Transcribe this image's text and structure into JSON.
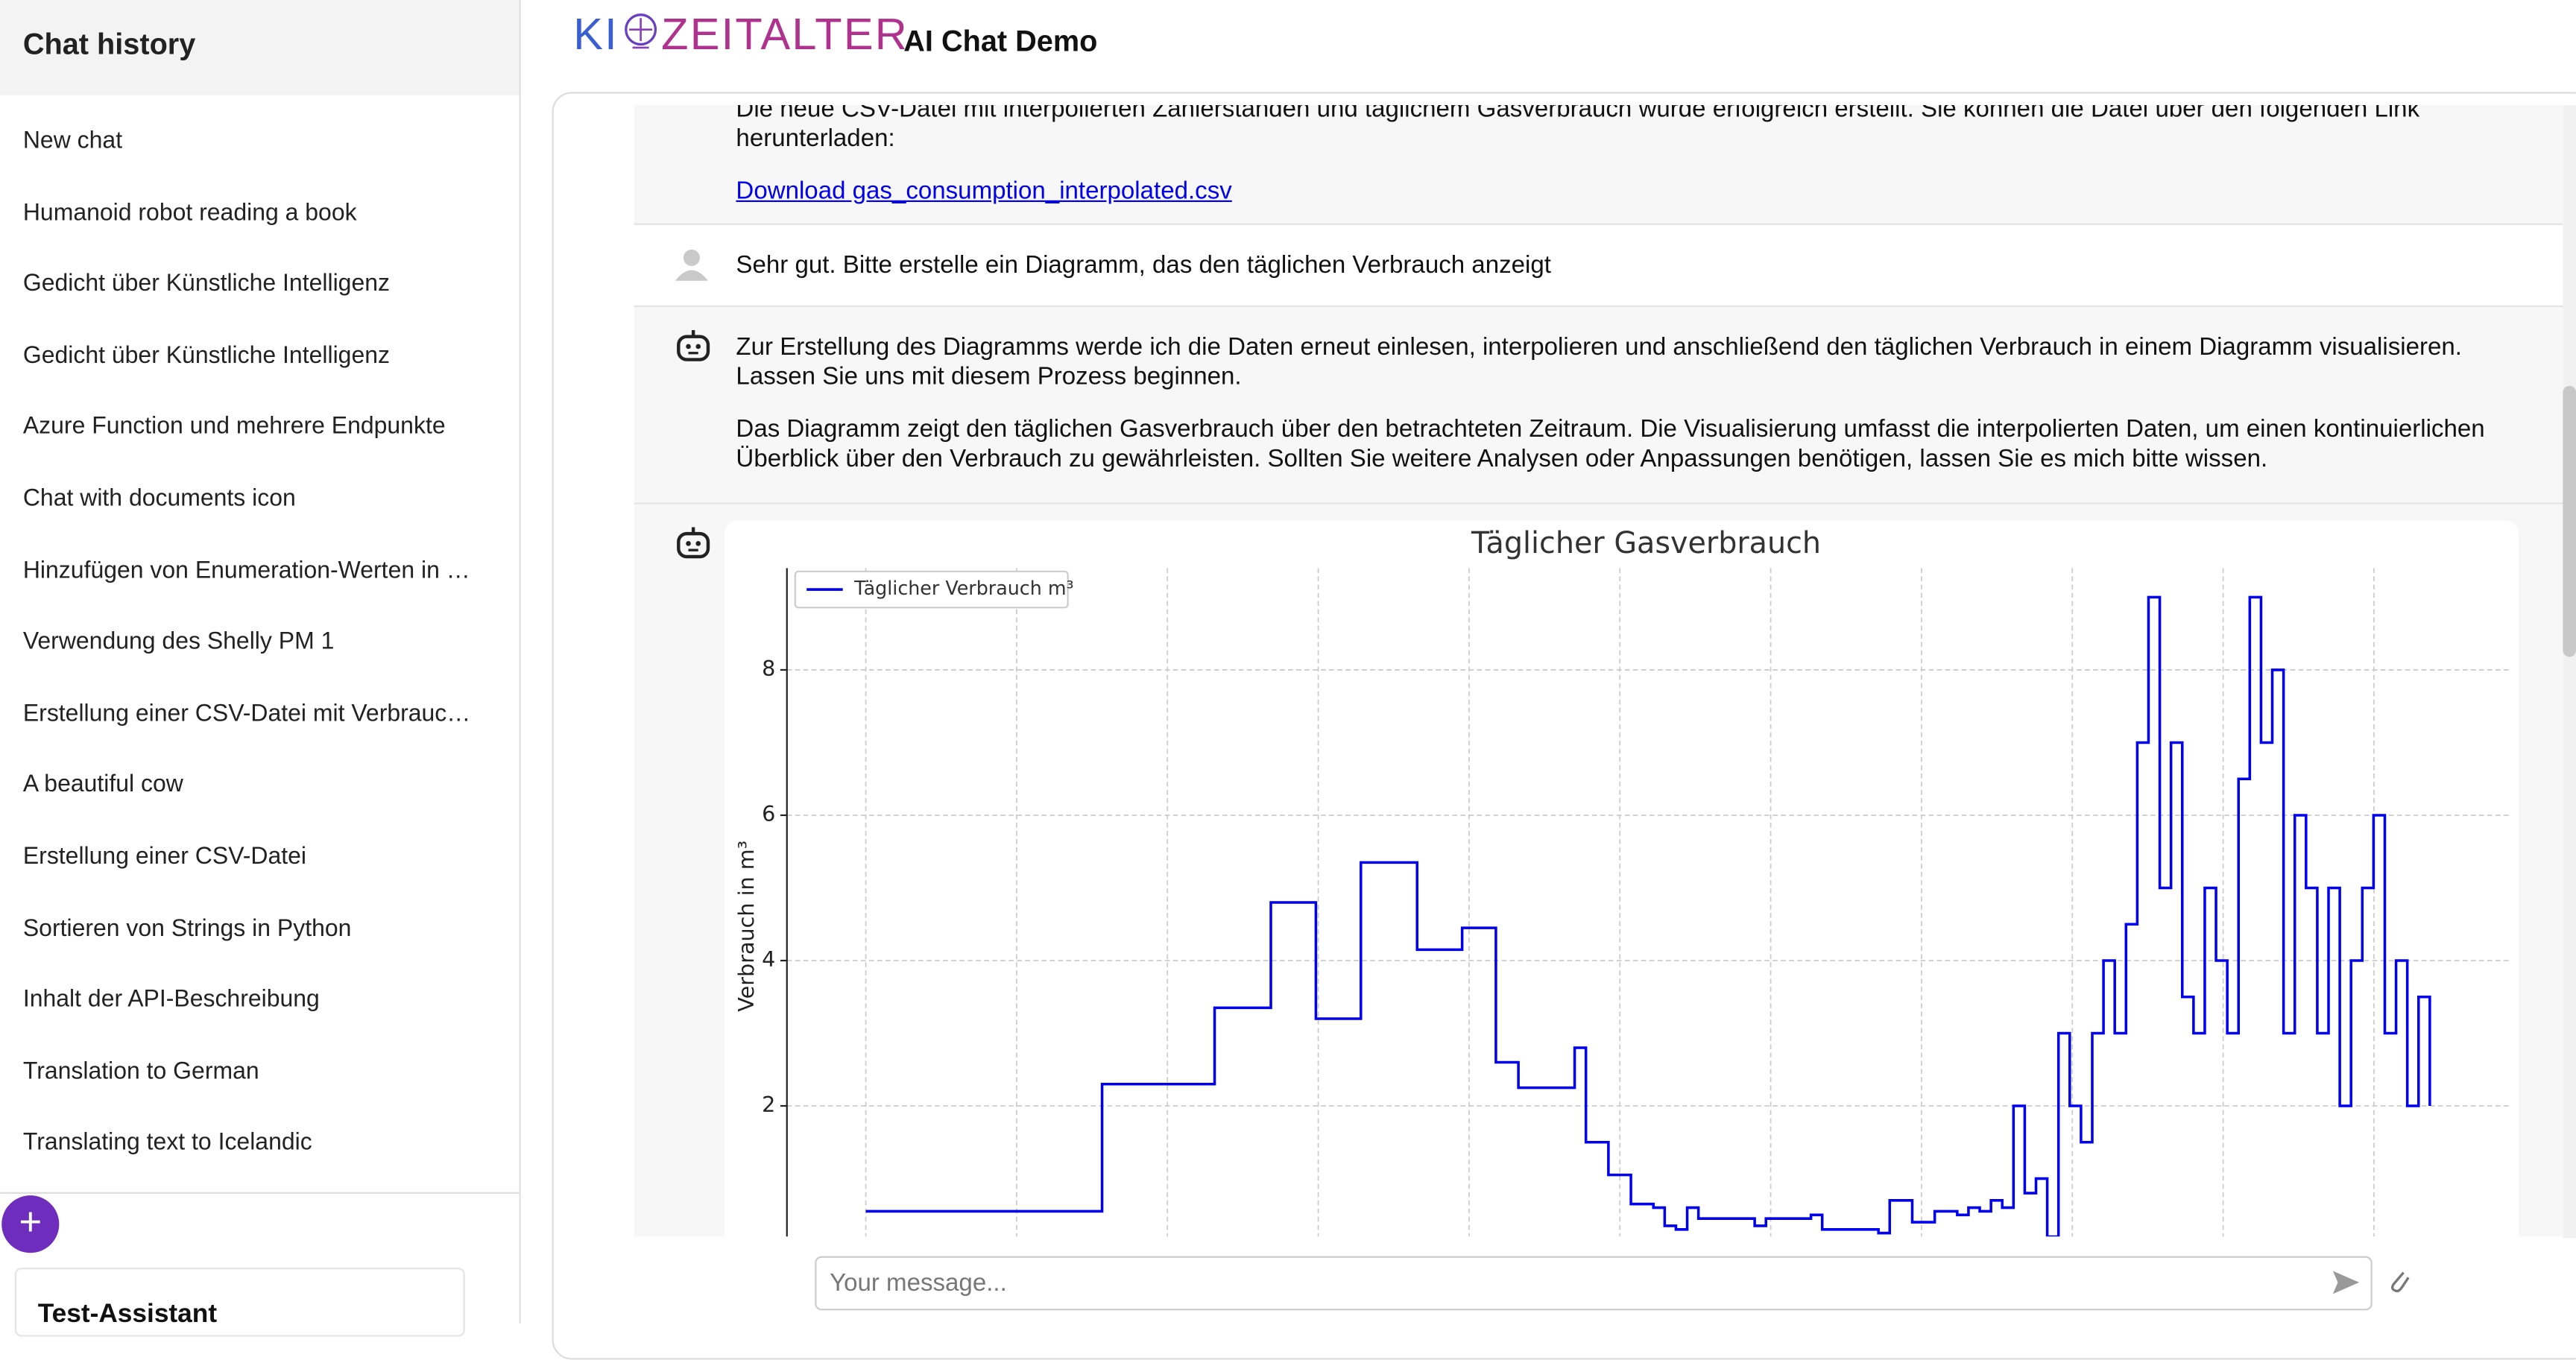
{
  "sidebar": {
    "title": "Chat history",
    "chats": [
      "New chat",
      "Humanoid robot reading a book",
      "Gedicht über Künstliche Intelligenz",
      "Gedicht über Künstliche Intelligenz",
      "Azure Function und mehrere Endpunkte",
      "Chat with documents icon",
      "Hinzufügen von Enumeration-Werten in …",
      "Verwendung des Shelly PM 1",
      "Erstellung einer CSV-Datei mit Verbrauc…",
      "A beautiful cow",
      "Erstellung einer CSV-Datei",
      "Sortieren von Strings in Python",
      "Inhalt der API-Beschreibung",
      "Translation to German",
      "Translating text to Icelandic"
    ],
    "assistant": "Test-Assistant"
  },
  "header": {
    "logo": [
      "KI",
      "ZEITALTER"
    ],
    "title": "AI Chat Demo"
  },
  "messages": [
    {
      "paragraphs": [
        "Die neue CSV-Datei mit interpolierten Zählerständen und täglichem Gasverbrauch wurde erfolgreich erstellt. Sie können die Datei über den folgenden Link herunterladen:"
      ],
      "link": "Download gas_consumption_interpolated.csv"
    },
    {
      "text": "Sehr gut. Bitte erstelle ein Diagramm, das den täglichen Verbrauch anzeigt"
    },
    {
      "paragraphs": [
        "Zur Erstellung des Diagramms werde ich die Daten erneut einlesen, interpolieren und anschließend den täglichen Verbrauch in einem Diagramm visualisieren. Lassen Sie uns mit diesem Prozess beginnen.",
        "Das Diagramm zeigt den täglichen Gasverbrauch über den betrachteten Zeitraum. Die Visualisierung umfasst die interpolierten Daten, um einen kontinuierlichen Überblick über den Verbrauch zu gewährleisten. Sollten Sie weitere Analysen oder Anpassungen benötigen, lassen Sie es mich bitte wissen."
      ]
    }
  ],
  "chart_data": {
    "type": "line",
    "drawstyle": "steps-post",
    "title": "Täglicher Gasverbrauch",
    "y_label": "Verbrauch in m³",
    "series": [
      {
        "name": "Täglicher Verbrauch m³",
        "color": "#0000ee",
        "values": [
          0.55,
          0.55,
          0.55,
          0.55,
          0.55,
          0.55,
          0.55,
          0.55,
          0.55,
          0.55,
          0.55,
          0.55,
          0.55,
          0.55,
          0.55,
          0.55,
          0.55,
          0.55,
          0.55,
          0.55,
          0.55,
          2.3,
          2.3,
          2.3,
          2.3,
          2.3,
          2.3,
          2.3,
          2.3,
          2.3,
          2.3,
          3.35,
          3.35,
          3.35,
          3.35,
          3.35,
          4.8,
          4.8,
          4.8,
          4.8,
          3.2,
          3.2,
          3.2,
          3.2,
          5.35,
          5.35,
          5.35,
          5.35,
          5.35,
          4.15,
          4.15,
          4.15,
          4.15,
          4.45,
          4.45,
          4.45,
          2.6,
          2.6,
          2.25,
          2.25,
          2.25,
          2.25,
          2.25,
          2.8,
          1.5,
          1.5,
          1.05,
          1.05,
          0.65,
          0.65,
          0.6,
          0.35,
          0.3,
          0.6,
          0.45,
          0.45,
          0.45,
          0.45,
          0.45,
          0.35,
          0.45,
          0.45,
          0.45,
          0.45,
          0.5,
          0.3,
          0.3,
          0.3,
          0.3,
          0.3,
          0.25,
          0.7,
          0.7,
          0.4,
          0.4,
          0.55,
          0.55,
          0.5,
          0.6,
          0.55,
          0.7,
          0.6,
          2.0,
          0.8,
          1.0,
          0.2,
          3.0,
          2.0,
          1.5,
          3.0,
          4.0,
          3.0,
          4.5,
          7.0,
          9.0,
          5.0,
          7.0,
          3.5,
          3.0,
          5.0,
          4.0,
          3.0,
          6.5,
          9.0,
          7.0,
          8.0,
          3.0,
          6.0,
          5.0,
          3.0,
          5.0,
          2.0,
          4.0,
          5.0,
          6.0,
          3.0,
          4.0,
          2.0,
          3.5,
          2.0
        ]
      }
    ],
    "ylim": [
      0,
      9.4
    ],
    "yticks": [
      2,
      4,
      6,
      8
    ],
    "grid": true,
    "legend": "upper left"
  },
  "input": {
    "placeholder": "Your message..."
  }
}
